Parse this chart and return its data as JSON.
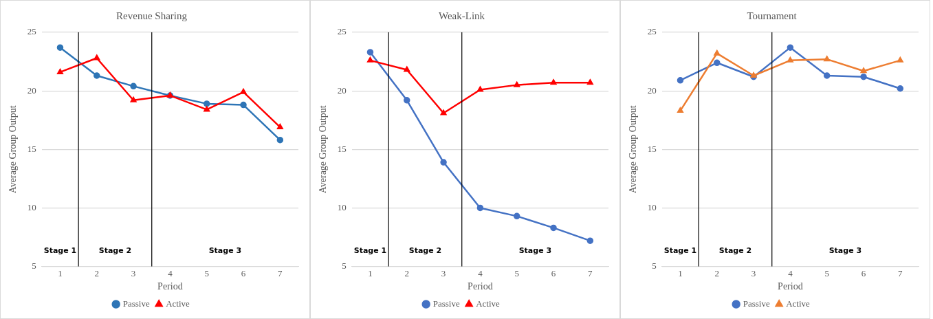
{
  "chart_data": [
    {
      "type": "line",
      "title": "Revenue Sharing",
      "xlabel": "Period",
      "ylabel": "Average Group Output",
      "x": [
        1,
        2,
        3,
        4,
        5,
        6,
        7
      ],
      "xlim": [
        0.5,
        7.5
      ],
      "xticks": [
        1,
        2,
        3,
        4,
        5,
        6,
        7
      ],
      "ylim": [
        5,
        25
      ],
      "yticks": [
        5,
        10,
        15,
        20,
        25
      ],
      "grid": "y",
      "legend": "bottom",
      "series": [
        {
          "name": "Passive",
          "color": "#2e75b6",
          "marker": "circle",
          "values": [
            23.7,
            21.3,
            20.4,
            19.6,
            18.9,
            18.8,
            15.8
          ]
        },
        {
          "name": "Active",
          "color": "#ff0000",
          "marker": "triangle",
          "values": [
            21.6,
            22.8,
            19.2,
            19.6,
            18.4,
            19.9,
            16.9
          ]
        }
      ],
      "ref_lines": [
        {
          "axis": "x",
          "value": 1.5,
          "color": "#000000"
        },
        {
          "axis": "x",
          "value": 3.5,
          "color": "#000000"
        }
      ],
      "annotations": [
        "Stage 1",
        "Stage 2",
        "Stage 3"
      ]
    },
    {
      "type": "line",
      "title": "Weak-Link",
      "xlabel": "Period",
      "ylabel": "Average Group Output",
      "x": [
        1,
        2,
        3,
        4,
        5,
        6,
        7
      ],
      "xlim": [
        0.5,
        7.5
      ],
      "xticks": [
        1,
        2,
        3,
        4,
        5,
        6,
        7
      ],
      "ylim": [
        5,
        25
      ],
      "yticks": [
        5,
        10,
        15,
        20,
        25
      ],
      "grid": "y",
      "legend": "bottom",
      "series": [
        {
          "name": "Passive",
          "color": "#4472c4",
          "marker": "circle",
          "values": [
            23.3,
            19.2,
            13.9,
            10.0,
            9.3,
            8.3,
            7.2
          ]
        },
        {
          "name": "Active",
          "color": "#ff0000",
          "marker": "triangle",
          "values": [
            22.6,
            21.8,
            18.1,
            20.1,
            20.5,
            20.7,
            20.7
          ]
        }
      ],
      "ref_lines": [
        {
          "axis": "x",
          "value": 1.5,
          "color": "#000000"
        },
        {
          "axis": "x",
          "value": 3.5,
          "color": "#000000"
        }
      ],
      "annotations": [
        "Stage 1",
        "Stage 2",
        "Stage 3"
      ]
    },
    {
      "type": "line",
      "title": "Tournament",
      "xlabel": "Period",
      "ylabel": "Average Group Output",
      "x": [
        1,
        2,
        3,
        4,
        5,
        6,
        7
      ],
      "xlim": [
        0.5,
        7.5
      ],
      "xticks": [
        1,
        2,
        3,
        4,
        5,
        6,
        7
      ],
      "ylim": [
        5,
        25
      ],
      "yticks": [
        5,
        10,
        15,
        20,
        25
      ],
      "grid": "y",
      "legend": "bottom",
      "series": [
        {
          "name": "Passive",
          "color": "#4472c4",
          "marker": "circle",
          "values": [
            20.9,
            22.4,
            21.2,
            23.7,
            21.3,
            21.2,
            20.2
          ]
        },
        {
          "name": "Active",
          "color": "#ed7d31",
          "marker": "triangle",
          "values": [
            18.3,
            23.2,
            21.3,
            22.6,
            22.7,
            21.7,
            22.6
          ]
        }
      ],
      "ref_lines": [
        {
          "axis": "x",
          "value": 1.5,
          "color": "#000000"
        },
        {
          "axis": "x",
          "value": 3.5,
          "color": "#000000"
        }
      ],
      "annotations": [
        "Stage 1",
        "Stage 2",
        "Stage 3"
      ]
    }
  ]
}
